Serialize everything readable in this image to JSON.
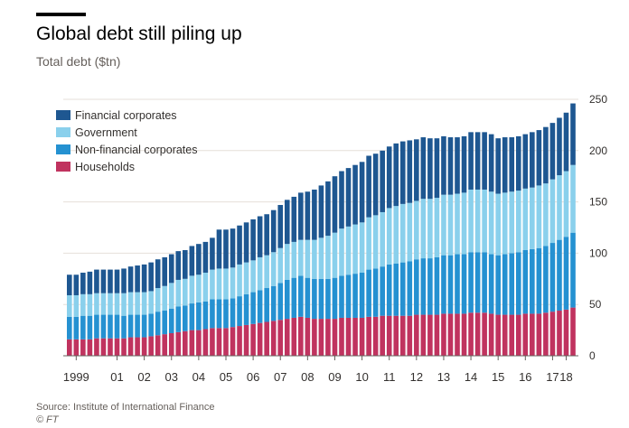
{
  "title": "Global debt still piling up",
  "subtitle": "Total debt ($tn)",
  "source": "Source: Institute of International Finance",
  "credit": "© FT",
  "colors": {
    "households": "#c0335f",
    "non_financial_corporates": "#2591d1",
    "government": "#8ad0ec",
    "financial_corporates": "#1e5791",
    "grid": "#e6dfd9",
    "axis": "#66605c",
    "text": "#33302e"
  },
  "chart_data": {
    "type": "bar",
    "stacked": true,
    "xlabel": "",
    "ylabel": "",
    "ylim": [
      0,
      250
    ],
    "yticks": [
      0,
      50,
      100,
      150,
      200,
      250
    ],
    "x_tick_labels": [
      {
        "label": "1999",
        "index": 1
      },
      {
        "label": "01",
        "index": 7
      },
      {
        "label": "02",
        "index": 11
      },
      {
        "label": "03",
        "index": 15
      },
      {
        "label": "04",
        "index": 19
      },
      {
        "label": "05",
        "index": 23
      },
      {
        "label": "06",
        "index": 27
      },
      {
        "label": "07",
        "index": 31
      },
      {
        "label": "08",
        "index": 35
      },
      {
        "label": "09",
        "index": 39
      },
      {
        "label": "10",
        "index": 43
      },
      {
        "label": "11",
        "index": 47
      },
      {
        "label": "12",
        "index": 51
      },
      {
        "label": "13",
        "index": 55
      },
      {
        "label": "14",
        "index": 59
      },
      {
        "label": "15",
        "index": 63
      },
      {
        "label": "16",
        "index": 67
      },
      {
        "label": "17",
        "index": 71
      },
      {
        "label": "18",
        "index": 73
      }
    ],
    "legend": [
      "Financial corporates",
      "Government",
      "Non-financial corporates",
      "Households"
    ],
    "legend_position": "top-left",
    "grid": true,
    "series": [
      {
        "name": "Households",
        "key": "households",
        "values": [
          16,
          16,
          16,
          16,
          17,
          17,
          17,
          17,
          17,
          18,
          18,
          18,
          19,
          20,
          21,
          22,
          23,
          24,
          25,
          25,
          26,
          27,
          27,
          27,
          28,
          29,
          30,
          31,
          32,
          33,
          34,
          35,
          36,
          37,
          38,
          37,
          36,
          36,
          36,
          36,
          37,
          37,
          37,
          37,
          38,
          38,
          39,
          39,
          39,
          39,
          39,
          40,
          40,
          40,
          40,
          41,
          41,
          41,
          41,
          42,
          42,
          42,
          41,
          40,
          40,
          40,
          40,
          41,
          41,
          41,
          42,
          43,
          44,
          45,
          47
        ]
      },
      {
        "name": "Non-financial corporates",
        "key": "non_financial_corporates",
        "values": [
          22,
          22,
          23,
          23,
          23,
          23,
          23,
          23,
          22,
          22,
          22,
          22,
          22,
          23,
          23,
          24,
          25,
          25,
          26,
          27,
          27,
          28,
          28,
          28,
          28,
          29,
          30,
          31,
          32,
          33,
          34,
          36,
          38,
          39,
          40,
          39,
          39,
          39,
          39,
          40,
          41,
          42,
          43,
          44,
          46,
          47,
          48,
          50,
          51,
          52,
          53,
          54,
          55,
          55,
          56,
          57,
          57,
          58,
          58,
          59,
          59,
          59,
          58,
          58,
          59,
          60,
          61,
          62,
          63,
          64,
          65,
          67,
          69,
          71,
          73
        ]
      },
      {
        "name": "Government",
        "key": "government",
        "values": [
          21,
          21,
          21,
          21,
          21,
          21,
          21,
          21,
          22,
          22,
          22,
          22,
          22,
          23,
          24,
          25,
          26,
          26,
          27,
          27,
          28,
          29,
          30,
          30,
          30,
          31,
          31,
          31,
          32,
          32,
          33,
          34,
          35,
          35,
          35,
          37,
          38,
          40,
          42,
          44,
          46,
          47,
          48,
          49,
          51,
          52,
          53,
          55,
          56,
          57,
          57,
          57,
          58,
          58,
          58,
          59,
          59,
          59,
          60,
          61,
          61,
          61,
          61,
          60,
          60,
          60,
          60,
          60,
          60,
          61,
          61,
          62,
          63,
          64,
          66
        ]
      },
      {
        "name": "Financial corporates",
        "key": "financial_corporates",
        "values": [
          20,
          20,
          21,
          22,
          23,
          23,
          23,
          23,
          24,
          25,
          26,
          27,
          28,
          28,
          28,
          28,
          28,
          28,
          29,
          30,
          30,
          31,
          38,
          38,
          38,
          38,
          39,
          40,
          40,
          40,
          41,
          42,
          43,
          44,
          46,
          47,
          49,
          51,
          53,
          55,
          56,
          57,
          58,
          59,
          60,
          60,
          60,
          60,
          61,
          61,
          61,
          60,
          60,
          59,
          58,
          57,
          56,
          55,
          55,
          56,
          56,
          56,
          56,
          54,
          54,
          53,
          53,
          53,
          54,
          54,
          55,
          55,
          56,
          57,
          60
        ]
      }
    ]
  }
}
